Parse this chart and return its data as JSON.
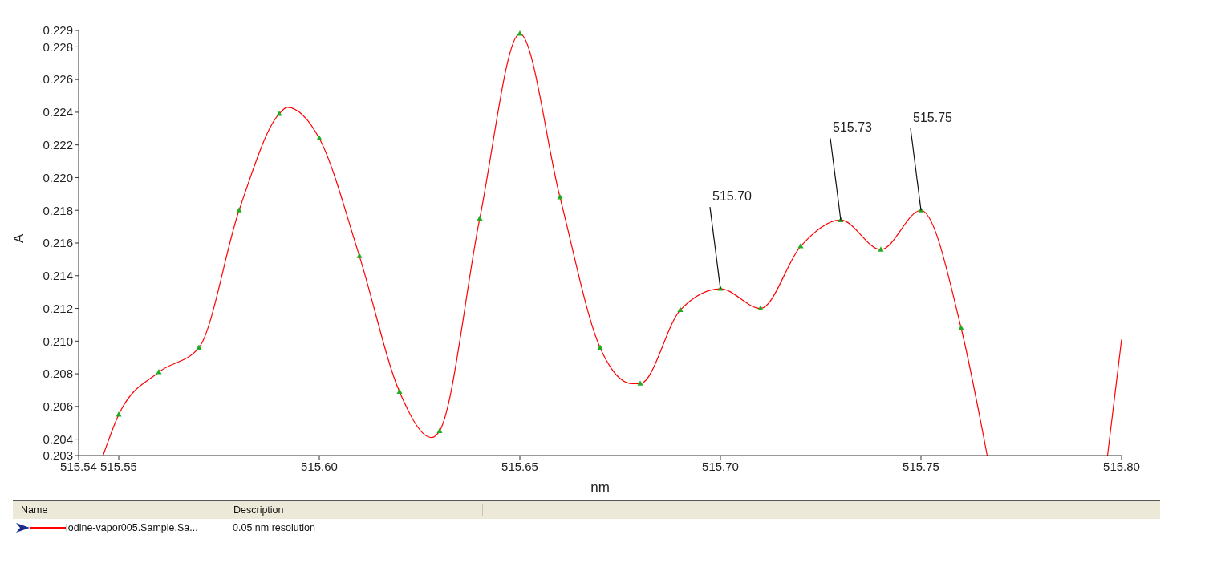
{
  "chart_data": {
    "type": "line",
    "xlabel": "nm",
    "ylabel": "A",
    "xlim": [
      515.54,
      515.8
    ],
    "xticks": [
      515.54,
      515.55,
      {
        "value": 515.6,
        "label": "515.60"
      },
      515.65,
      {
        "value": 515.7,
        "label": "515.70"
      },
      515.75,
      {
        "value": 515.8,
        "label": "515.80"
      }
    ],
    "ylim": [
      0.203,
      0.229
    ],
    "yticks": [
      0.203,
      0.204,
      0.206,
      0.208,
      {
        "value": 0.21,
        "label": "0.210"
      },
      0.212,
      0.214,
      0.216,
      0.218,
      {
        "value": 0.22,
        "label": "0.220"
      },
      0.222,
      0.224,
      0.226,
      0.228,
      0.229
    ],
    "grid": false,
    "legend": "bottom",
    "series": [
      {
        "name": "iodine-vapor005.Sample.Sa...",
        "color": "#ff0000",
        "marker": "none",
        "x": [
          515.5461,
          515.55,
          515.56,
          515.57,
          515.58,
          515.59,
          515.592,
          515.6,
          515.61,
          515.62,
          515.628,
          515.63,
          515.64,
          515.65,
          515.66,
          515.67,
          515.678,
          515.68,
          515.69,
          515.7,
          515.71,
          515.72,
          515.73,
          515.74,
          515.75,
          515.76,
          515.7665,
          515.78,
          515.7965,
          515.8
        ],
        "values": [
          0.203,
          0.2055,
          0.2081,
          0.2096,
          0.218,
          0.2239,
          0.2243,
          0.2224,
          0.2152,
          0.2069,
          0.2041,
          0.2045,
          0.2175,
          0.2288,
          0.2188,
          0.2096,
          0.2074,
          0.2074,
          0.2119,
          0.2132,
          0.212,
          0.2158,
          0.2174,
          0.2156,
          0.218,
          0.2108,
          0.203,
          null,
          0.203,
          0.2101
        ]
      },
      {
        "type": "scatter",
        "color": "#22aa22",
        "marker": "triangle",
        "x": [
          515.55,
          515.56,
          515.57,
          515.58,
          515.59,
          515.6,
          515.61,
          515.62,
          515.63,
          515.64,
          515.65,
          515.66,
          515.67,
          515.68,
          515.69,
          515.7,
          515.71,
          515.72,
          515.73,
          515.74,
          515.75,
          515.76
        ],
        "values": [
          0.2055,
          0.2081,
          0.2096,
          0.218,
          0.2239,
          0.2224,
          0.2152,
          0.2069,
          0.2045,
          0.2175,
          0.2288,
          0.2188,
          0.2096,
          0.2074,
          0.2119,
          0.2132,
          0.212,
          0.2158,
          0.2174,
          0.2156,
          0.218,
          0.2108
        ]
      }
    ],
    "annotations": [
      {
        "text": "515.70",
        "x": 515.7,
        "y": 0.2132
      },
      {
        "text": "515.73",
        "x": 515.73,
        "y": 0.2174
      },
      {
        "text": "515.75",
        "x": 515.75,
        "y": 0.218
      },
      "Name",
      "Description",
      "0.05 nm resolution"
    ]
  }
}
